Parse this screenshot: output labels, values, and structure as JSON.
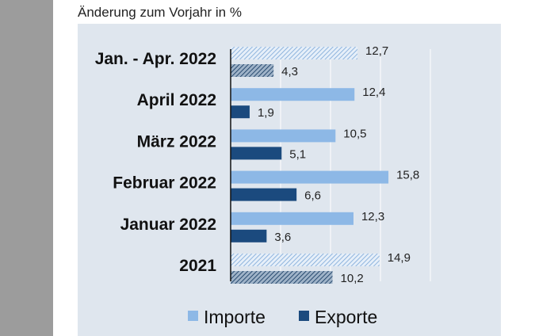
{
  "chart_data": {
    "type": "bar",
    "orientation": "horizontal",
    "title": "Änderung zum Vorjahr in %",
    "categories": [
      "Jan. - Apr. 2022",
      "April 2022",
      "März 2022",
      "Februar 2022",
      "Januar 2022",
      "2021"
    ],
    "series": [
      {
        "name": "Importe",
        "values": [
          12.7,
          12.4,
          10.5,
          15.8,
          12.3,
          14.9
        ],
        "labels": [
          "12,7",
          "12,4",
          "10,5",
          "15,8",
          "12,3",
          "14,9"
        ]
      },
      {
        "name": "Exporte",
        "values": [
          4.3,
          1.9,
          5.1,
          6.6,
          3.6,
          10.2
        ],
        "labels": [
          "4,3",
          "1,9",
          "5,1",
          "6,6",
          "3,6",
          "10,2"
        ]
      }
    ],
    "hatched_categories": [
      "Jan. - Apr. 2022",
      "2021"
    ],
    "xlim": [
      0,
      20
    ],
    "grid": "vertical",
    "legend": "bottom",
    "colors": {
      "Importe": "#8db8e6",
      "Exporte": "#1b4a7e",
      "background": "#dfe6ee",
      "grid": "#ffffff"
    }
  }
}
